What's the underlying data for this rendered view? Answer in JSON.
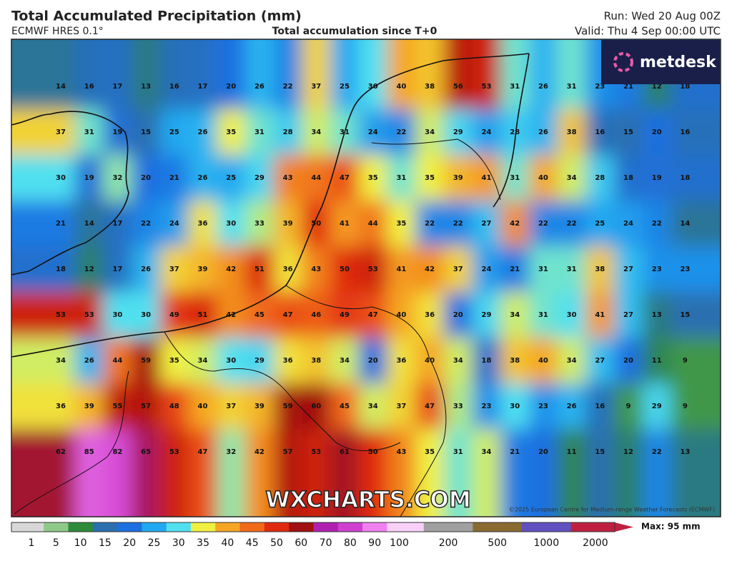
{
  "header": {
    "title": "Total Accumulated Precipitation (mm)",
    "model": "ECMWF HRES 0.1°",
    "subtitle": "Total accumulation since T+0",
    "run": "Run: Wed 20 Aug 00Z",
    "valid": "Valid: Thu 4 Sep 00:00 UTC"
  },
  "logo": "metdesk",
  "watermark": "WXCHARTS.COM",
  "copyright": "©2025 European Centre for Medium-range Weather Forecasts (ECMWF)",
  "map": {
    "rows": [
      [
        14,
        16,
        17,
        13,
        16,
        17,
        20,
        26,
        22,
        37,
        25,
        30,
        40,
        38,
        56,
        53,
        31,
        26,
        31,
        23,
        21,
        12,
        18
      ],
      [
        37,
        31,
        19,
        15,
        25,
        26,
        35,
        31,
        28,
        34,
        31,
        24,
        22,
        34,
        29,
        24,
        28,
        26,
        38,
        16,
        15,
        20,
        16
      ],
      [
        30,
        19,
        32,
        20,
        21,
        26,
        25,
        29,
        43,
        44,
        47,
        35,
        31,
        35,
        39,
        41,
        31,
        40,
        34,
        28,
        18,
        19,
        18
      ],
      [
        21,
        14,
        17,
        22,
        24,
        36,
        30,
        33,
        39,
        50,
        41,
        44,
        35,
        22,
        22,
        27,
        42,
        22,
        22,
        25,
        24,
        22,
        14
      ],
      [
        18,
        12,
        17,
        26,
        37,
        39,
        42,
        51,
        36,
        43,
        50,
        53,
        41,
        42,
        37,
        24,
        21,
        31,
        31,
        38,
        27,
        23,
        23
      ],
      [
        53,
        53,
        30,
        30,
        49,
        51,
        42,
        45,
        47,
        46,
        49,
        47,
        40,
        36,
        20,
        29,
        34,
        31,
        30,
        41,
        27,
        13,
        15
      ],
      [
        34,
        26,
        44,
        59,
        35,
        34,
        30,
        29,
        36,
        38,
        34,
        20,
        36,
        40,
        34,
        18,
        38,
        40,
        34,
        27,
        20,
        11,
        9
      ],
      [
        36,
        39,
        55,
        57,
        48,
        40,
        37,
        39,
        59,
        60,
        45,
        34,
        37,
        47,
        33,
        23,
        30,
        23,
        26,
        16,
        9,
        29,
        9
      ],
      [
        62,
        85,
        82,
        65,
        53,
        47,
        32,
        42,
        57,
        53,
        61,
        50,
        43,
        35,
        31,
        34,
        21,
        20,
        11,
        15,
        12,
        22,
        13
      ]
    ]
  },
  "colorbar": {
    "ticks": [
      1,
      5,
      10,
      15,
      20,
      25,
      30,
      35,
      40,
      45,
      50,
      60,
      70,
      80,
      90,
      100,
      200,
      500,
      1000,
      2000
    ],
    "colors": [
      "#d8d8d8",
      "#8fc98a",
      "#2e8b3a",
      "#2a6fb0",
      "#1e6fe0",
      "#20a8f0",
      "#50e0f0",
      "#f0f040",
      "#f5a623",
      "#f06a1a",
      "#e02a10",
      "#a01010",
      "#b020b0",
      "#d040d0",
      "#f080f0",
      "#f8d0f8",
      "#a0a0a0",
      "#8a6a30",
      "#6050c0",
      "#c02040"
    ],
    "max_label": "Max: 95 mm"
  }
}
